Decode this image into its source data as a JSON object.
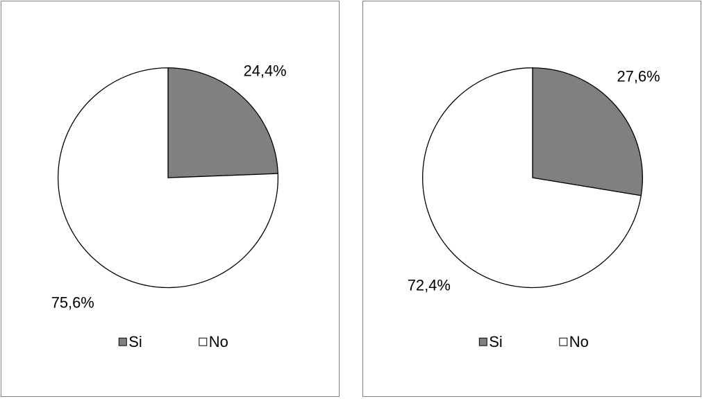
{
  "chart_data": [
    {
      "type": "pie",
      "categories": [
        "Si",
        "No"
      ],
      "values": [
        24.4,
        75.6
      ],
      "value_labels": [
        "24,4%",
        "75,6%"
      ],
      "colors": [
        "#808080",
        "#ffffff"
      ],
      "legend_position": "bottom"
    },
    {
      "type": "pie",
      "categories": [
        "Si",
        "No"
      ],
      "values": [
        27.6,
        72.4
      ],
      "value_labels": [
        "27,6%",
        "72,4%"
      ],
      "colors": [
        "#808080",
        "#ffffff"
      ],
      "legend_position": "bottom"
    }
  ]
}
